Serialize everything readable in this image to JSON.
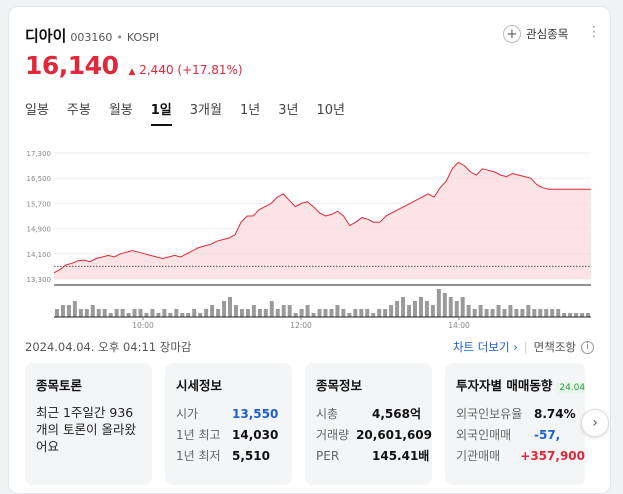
{
  "stock": {
    "name": "디아이",
    "code": "003160",
    "separator": "•",
    "market": "KOSPI",
    "price": "16,140",
    "change_arrow": "▲",
    "change_amount": "2,440",
    "change_percent": "(+17.81%)"
  },
  "header": {
    "favorite_icon": "+",
    "favorite_label": "관심종목",
    "more_icon": "⋮"
  },
  "tabs": [
    {
      "label": "일봉"
    },
    {
      "label": "주봉"
    },
    {
      "label": "월봉"
    },
    {
      "label": "1일"
    },
    {
      "label": "3개월"
    },
    {
      "label": "1년"
    },
    {
      "label": "3년"
    },
    {
      "label": "10년"
    }
  ],
  "colors": {
    "up": "#e0283a",
    "down": "#1b5fd1",
    "line": "#e0283a",
    "fill": "#fbd9dc"
  },
  "chart_data": {
    "type": "area",
    "y_ticks": [
      "17,300",
      "16,500",
      "15,700",
      "14,900",
      "14,100",
      "13,300"
    ],
    "ylim": [
      13300,
      17300
    ],
    "x_ticks": [
      "10:00",
      "12:00",
      "14:00"
    ],
    "prev_close": 13700,
    "price": [
      13500,
      13600,
      13750,
      13800,
      13880,
      13900,
      13850,
      13950,
      14000,
      14050,
      14000,
      14100,
      14150,
      14200,
      14150,
      14100,
      14050,
      14000,
      13950,
      14000,
      14050,
      14000,
      14100,
      14200,
      14300,
      14350,
      14400,
      14500,
      14550,
      14600,
      14700,
      15100,
      15300,
      15300,
      15500,
      15600,
      15700,
      15900,
      16000,
      15800,
      15600,
      15700,
      15750,
      15600,
      15400,
      15300,
      15350,
      15450,
      15300,
      15000,
      15100,
      15250,
      15200,
      15100,
      15100,
      15300,
      15400,
      15500,
      15600,
      15700,
      15800,
      15900,
      16000,
      15900,
      16200,
      16400,
      16800,
      17000,
      16900,
      16700,
      16600,
      16800,
      16750,
      16700,
      16600,
      16550,
      16650,
      16600,
      16550,
      16500,
      16300,
      16200,
      16150,
      16150,
      16150,
      16150,
      16150,
      16150,
      16150,
      16150
    ],
    "volume": [
      2,
      3,
      3,
      4,
      2,
      2,
      3,
      2,
      2,
      1,
      2,
      2,
      1,
      2,
      2,
      1,
      2,
      1,
      2,
      1,
      2,
      1,
      1,
      2,
      1,
      2,
      3,
      2,
      4,
      5,
      3,
      2,
      2,
      3,
      2,
      2,
      4,
      2,
      3,
      3,
      1,
      2,
      3,
      1,
      2,
      2,
      2,
      3,
      2,
      1,
      2,
      2,
      2,
      1,
      2,
      2,
      3,
      4,
      5,
      3,
      4,
      5,
      4,
      3,
      7,
      6,
      5,
      4,
      5,
      3,
      2,
      3,
      2,
      2,
      3,
      2,
      3,
      2,
      2,
      3,
      2,
      2,
      2,
      2,
      2,
      1,
      1,
      1,
      1,
      1
    ]
  },
  "timestamp": "2024.04.04. 오후 04:11 장마감",
  "links": {
    "chart_more": "차트 더보기",
    "chart_more_arrow": "›",
    "separator": "|",
    "disclaimer": "면책조항",
    "info_icon": "i"
  },
  "panels": {
    "forum": {
      "title": "종목토론",
      "text": "최근 1주일간 936개의 토론이 올라왔어요"
    },
    "market_info": {
      "title": "시세정보",
      "rows": [
        {
          "label": "시가",
          "value": "13,550"
        },
        {
          "label": "1년 최고",
          "value": "14,030"
        },
        {
          "label": "1년 최저",
          "value": "5,510"
        }
      ]
    },
    "stock_info": {
      "title": "종목정보",
      "rows": [
        {
          "label": "시총",
          "value": "4,568억"
        },
        {
          "label": "거래량",
          "value": "20,601,609"
        },
        {
          "label": "PER",
          "value": "145.41배"
        }
      ]
    },
    "investor": {
      "title": "투자자별 매매동향",
      "badge": "24.04",
      "rows": [
        {
          "label": "외국인보유율",
          "value": "8.74%"
        },
        {
          "label": "외국인매매",
          "value": "-57,"
        },
        {
          "label": "기관매매",
          "value": "+357,900"
        }
      ]
    }
  },
  "next_icon": "›"
}
